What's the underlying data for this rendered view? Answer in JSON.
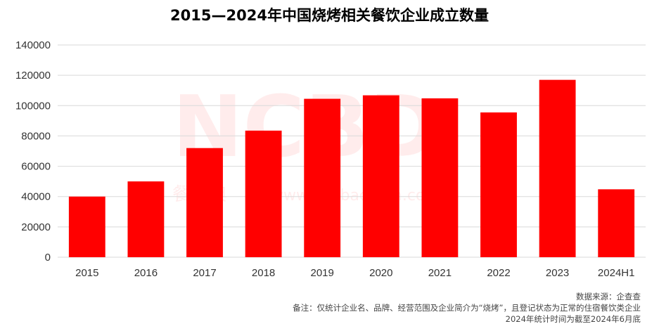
{
  "chart_data": {
    "type": "bar",
    "title": "2015—2024年中国烧烤相关餐饮企业成立数量",
    "categories": [
      "2015",
      "2016",
      "2017",
      "2018",
      "2019",
      "2020",
      "2021",
      "2022",
      "2023",
      "2024H1"
    ],
    "values": [
      40000,
      50000,
      72000,
      83500,
      104500,
      106800,
      104800,
      95500,
      117000,
      44800
    ],
    "ylim": [
      0,
      140000
    ],
    "yticks": [
      0,
      20000,
      40000,
      60000,
      80000,
      100000,
      120000,
      140000
    ],
    "xlabel": "",
    "ylabel": "",
    "grid": true,
    "bar_color": "#ff0000"
  },
  "watermark": {
    "logo": "NCBD",
    "brand": "餐宝典",
    "url": "www.canbaodian.com"
  },
  "notes": {
    "source": "数据来源：企查查",
    "remark": "备注：仅统计企业名、品牌、经营范围及企业简介为“烧烤”，且登记状态为正常的住宿餐饮类企业",
    "period": "2024年统计时间为截至2024年6月底"
  }
}
